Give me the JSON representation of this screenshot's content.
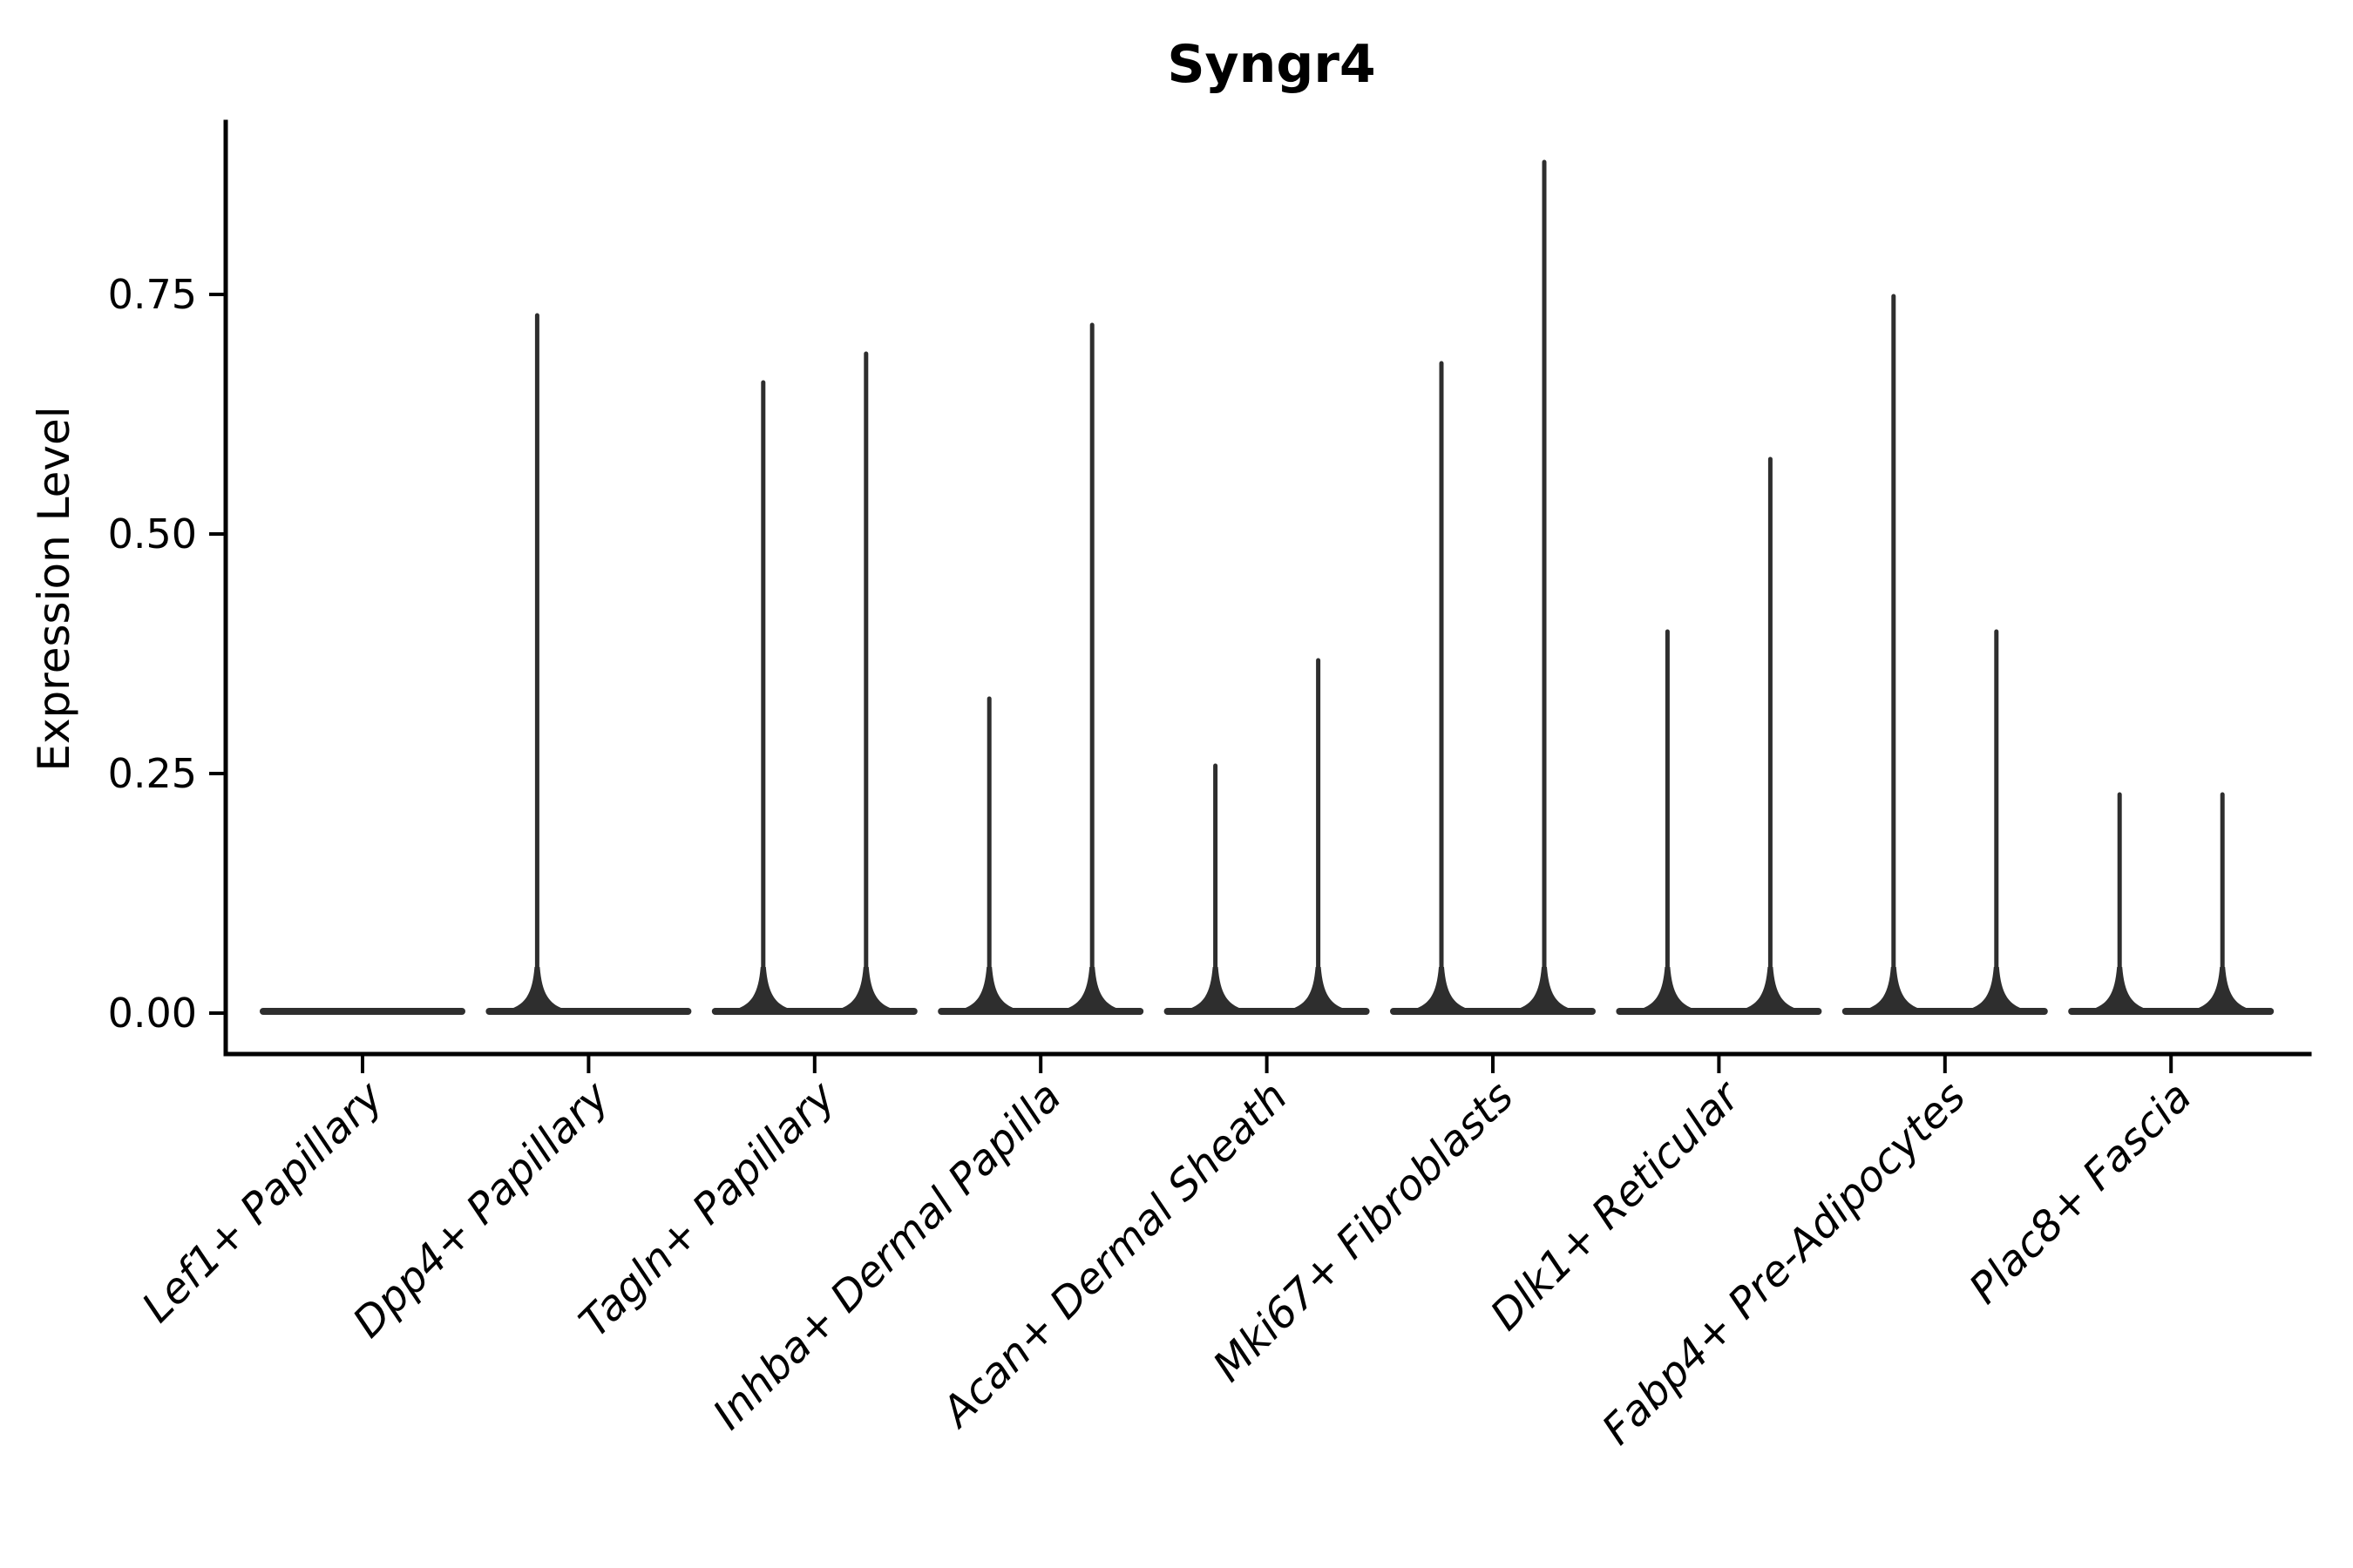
{
  "figure": {
    "title": "Syngr4",
    "y_axis_label": "Expression Level"
  },
  "colors": {
    "background": "#ffffff",
    "axis": "#000000",
    "text": "#000000",
    "violin": "#2e2e2e"
  },
  "chart_data": {
    "type": "violin",
    "title": "Syngr4",
    "xlabel": "",
    "ylabel": "Expression Level",
    "categories": [
      "Lef1+ Papillary",
      "Dpp4+ Papillary",
      "Tagln+ Papillary",
      "Inhba+ Dermal Papilla",
      "Acan+ Dermal Sheath",
      "Mki67+ Fibroblasts",
      "Dlk1+ Reticular",
      "Fabp4+ Pre-Adipocytes",
      "Plac8+ Fascia"
    ],
    "violins_per_category": 2,
    "series": [
      {
        "name": "left violin",
        "max_expression": [
          0,
          0.73,
          0.66,
          0.33,
          0.26,
          0.68,
          0.4,
          0.75,
          0.23
        ]
      },
      {
        "name": "right violin",
        "max_expression": [
          0,
          0,
          0.69,
          0.72,
          0.37,
          0.89,
          0.58,
          0.4,
          0.23
        ]
      }
    ],
    "distribution_note": "nearly all density at 0; each violin is a flat base at 0 with a thin spike up to its max expression value",
    "yticks": [
      "0.00",
      "0.25",
      "0.50",
      "0.75"
    ],
    "ytick_values": [
      0,
      0.25,
      0.5,
      0.75
    ],
    "ylim": [
      -0.04,
      0.93
    ],
    "grid": false,
    "legend": "none",
    "x_tick_label_style": "italic, rotated 45 degrees, right-anchored"
  }
}
